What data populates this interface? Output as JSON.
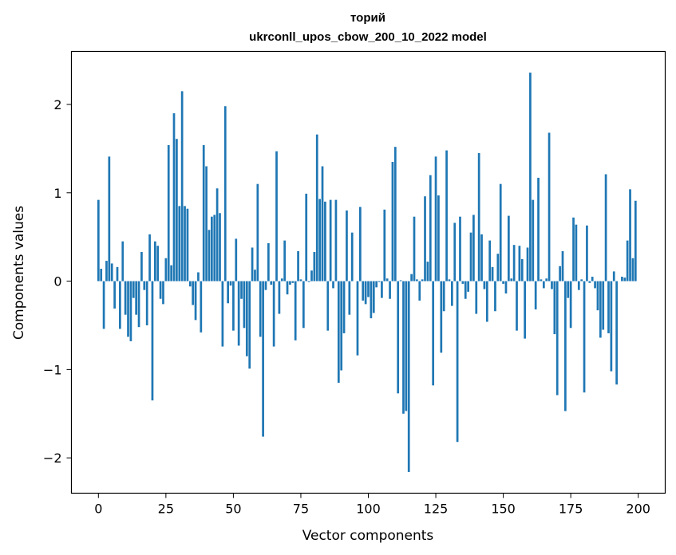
{
  "chart_data": {
    "type": "bar",
    "title": "торий",
    "subtitle": "ukrconll_upos_cbow_200_10_2022 model",
    "xlabel": "Vector components",
    "ylabel": "Components values",
    "xlim": [
      -10,
      210
    ],
    "ylim": [
      -2.4,
      2.6
    ],
    "xticks": [
      0,
      25,
      50,
      75,
      100,
      125,
      150,
      175,
      200
    ],
    "xtick_labels": [
      "0",
      "25",
      "50",
      "75",
      "100",
      "125",
      "150",
      "175",
      "200"
    ],
    "yticks": [
      -2,
      -1,
      0,
      1,
      2
    ],
    "ytick_labels": [
      "−2",
      "−1",
      "0",
      "1",
      "2"
    ],
    "grid": false,
    "bar_color": "#1f77b4",
    "x": [
      0,
      1,
      2,
      3,
      4,
      5,
      6,
      7,
      8,
      9,
      10,
      11,
      12,
      13,
      14,
      15,
      16,
      17,
      18,
      19,
      20,
      21,
      22,
      23,
      24,
      25,
      26,
      27,
      28,
      29,
      30,
      31,
      32,
      33,
      34,
      35,
      36,
      37,
      38,
      39,
      40,
      41,
      42,
      43,
      44,
      45,
      46,
      47,
      48,
      49,
      50,
      51,
      52,
      53,
      54,
      55,
      56,
      57,
      58,
      59,
      60,
      61,
      62,
      63,
      64,
      65,
      66,
      67,
      68,
      69,
      70,
      71,
      72,
      73,
      74,
      75,
      76,
      77,
      78,
      79,
      80,
      81,
      82,
      83,
      84,
      85,
      86,
      87,
      88,
      89,
      90,
      91,
      92,
      93,
      94,
      95,
      96,
      97,
      98,
      99,
      100,
      101,
      102,
      103,
      104,
      105,
      106,
      107,
      108,
      109,
      110,
      111,
      112,
      113,
      114,
      115,
      116,
      117,
      118,
      119,
      120,
      121,
      122,
      123,
      124,
      125,
      126,
      127,
      128,
      129,
      130,
      131,
      132,
      133,
      134,
      135,
      136,
      137,
      138,
      139,
      140,
      141,
      142,
      143,
      144,
      145,
      146,
      147,
      148,
      149,
      150,
      151,
      152,
      153,
      154,
      155,
      156,
      157,
      158,
      159,
      160,
      161,
      162,
      163,
      164,
      165,
      166,
      167,
      168,
      169,
      170,
      171,
      172,
      173,
      174,
      175,
      176,
      177,
      178,
      179,
      180,
      181,
      182,
      183,
      184,
      185,
      186,
      187,
      188,
      189,
      190,
      191,
      192,
      193,
      194,
      195,
      196,
      197,
      198,
      199
    ],
    "values": [
      0.92,
      0.14,
      -0.54,
      0.23,
      1.41,
      0.2,
      -0.31,
      0.16,
      -0.54,
      0.45,
      -0.38,
      -0.63,
      -0.68,
      -0.19,
      -0.38,
      -0.52,
      0.33,
      -0.1,
      -0.5,
      0.53,
      -1.35,
      0.45,
      0.4,
      -0.2,
      -0.26,
      0.26,
      1.54,
      0.18,
      1.9,
      1.61,
      0.85,
      2.15,
      0.85,
      0.82,
      -0.06,
      -0.27,
      -0.44,
      0.1,
      -0.58,
      1.54,
      1.3,
      0.58,
      0.73,
      0.75,
      1.05,
      0.77,
      -0.74,
      1.98,
      -0.25,
      -0.05,
      -0.56,
      0.48,
      -0.73,
      -0.2,
      -0.53,
      -0.85,
      -0.99,
      0.38,
      0.13,
      1.1,
      -0.63,
      -1.76,
      -0.1,
      0.43,
      -0.04,
      -0.74,
      1.47,
      -0.37,
      0.03,
      0.46,
      -0.15,
      -0.04,
      -0.02,
      -0.67,
      0.34,
      0.02,
      -0.53,
      0.99,
      -0.01,
      0.12,
      0.33,
      1.66,
      0.93,
      1.3,
      0.9,
      -0.56,
      0.92,
      -0.08,
      0.92,
      -1.15,
      -1.01,
      -0.59,
      0.8,
      -0.38,
      0.55,
      0.0,
      -0.84,
      0.84,
      -0.22,
      -0.26,
      -0.18,
      -0.42,
      -0.36,
      -0.07,
      -0.01,
      -0.19,
      0.81,
      0.03,
      -0.2,
      1.35,
      1.52,
      -1.27,
      0.01,
      -1.5,
      -1.47,
      -2.16,
      0.08,
      0.73,
      0.02,
      -0.22,
      0.02,
      0.96,
      0.22,
      1.2,
      -1.18,
      1.41,
      0.97,
      -0.81,
      -0.34,
      1.48,
      0.02,
      -0.28,
      0.66,
      -1.82,
      0.73,
      -0.03,
      -0.2,
      -0.12,
      0.55,
      0.75,
      -0.37,
      1.45,
      0.53,
      -0.09,
      -0.46,
      0.46,
      0.16,
      -0.34,
      0.31,
      1.1,
      -0.03,
      -0.14,
      0.74,
      0.03,
      0.41,
      -0.56,
      0.4,
      0.25,
      -0.65,
      0.38,
      2.36,
      0.92,
      -0.32,
      1.17,
      0.02,
      -0.08,
      0.03,
      1.68,
      -0.09,
      -0.6,
      -1.29,
      0.17,
      0.34,
      -1.47,
      -0.19,
      -0.53,
      0.72,
      0.64,
      -0.1,
      0.02,
      -1.26,
      0.63,
      -0.02,
      0.05,
      -0.08,
      -0.33,
      -0.64,
      -0.55,
      1.21,
      -0.59,
      -1.02,
      0.11,
      -1.17,
      0.0,
      0.05,
      0.04,
      0.46,
      1.04,
      0.26,
      0.91
    ]
  }
}
